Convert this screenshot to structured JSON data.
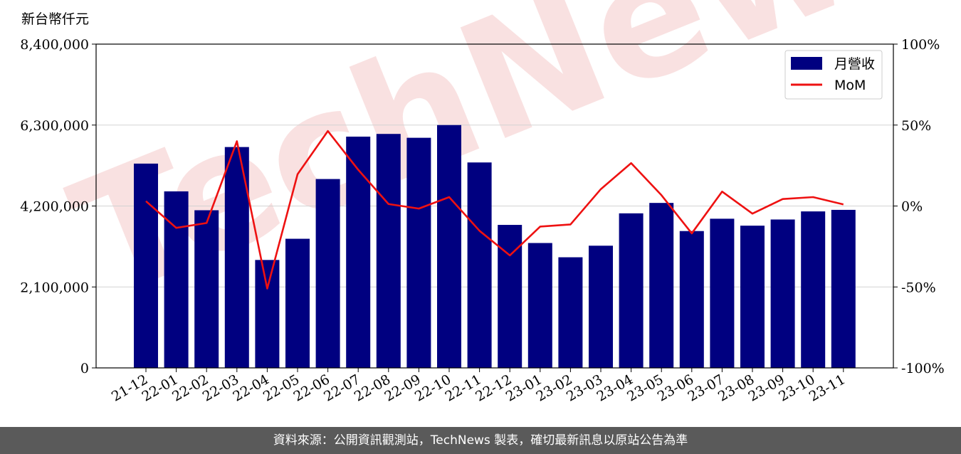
{
  "footer": {
    "source_text": "資料來源：公開資訊觀測站，TechNews 製表，確切最新訊息以原站公告為準"
  },
  "watermark": {
    "text": "TechNews",
    "color": "#f4c9c9"
  },
  "chart_data": {
    "type": "bar",
    "unit_label": "新台幣仟元",
    "categories": [
      "21-12",
      "22-01",
      "22-02",
      "22-03",
      "22-04",
      "22-05",
      "22-06",
      "22-07",
      "22-08",
      "22-09",
      "22-10",
      "22-11",
      "22-12",
      "23-01",
      "23-02",
      "23-03",
      "23-04",
      "23-05",
      "23-06",
      "23-07",
      "23-08",
      "23-09",
      "23-10",
      "23-11"
    ],
    "series": [
      {
        "name": "月營收",
        "kind": "bar",
        "axis": "left",
        "color": "#000080",
        "values": [
          5300000,
          4580000,
          4090000,
          5730000,
          2800000,
          3350000,
          4900000,
          6000000,
          6070000,
          5970000,
          6300000,
          5330000,
          3710000,
          3240000,
          2870000,
          3170000,
          4010000,
          4280000,
          3550000,
          3870000,
          3690000,
          3850000,
          4060000,
          4100000
        ]
      },
      {
        "name": "MoM",
        "kind": "line",
        "axis": "right",
        "color": "#ee1111",
        "values": [
          3,
          -13.5,
          -10.5,
          40,
          -51,
          19.6,
          46.3,
          22.4,
          1.2,
          -1.6,
          5.5,
          -15.3,
          -30.5,
          -12.7,
          -11.4,
          10.4,
          26.5,
          6.7,
          -16.9,
          8.9,
          -4.7,
          4.3,
          5.5,
          1.0
        ]
      }
    ],
    "left_axis": {
      "min": 0,
      "max": 8400000,
      "ticks": [
        0,
        2100000,
        4200000,
        6300000,
        8400000
      ],
      "tick_labels": [
        "0",
        "2,100,000",
        "4,200,000",
        "6,300,000",
        "8,400,000"
      ]
    },
    "right_axis": {
      "min": -100,
      "max": 100,
      "ticks": [
        -100,
        -50,
        0,
        50,
        100
      ],
      "tick_labels": [
        "-100%",
        "-50%",
        "0%",
        "50%",
        "100%"
      ]
    },
    "grid": "horizontal",
    "legend_position": "top-right"
  }
}
